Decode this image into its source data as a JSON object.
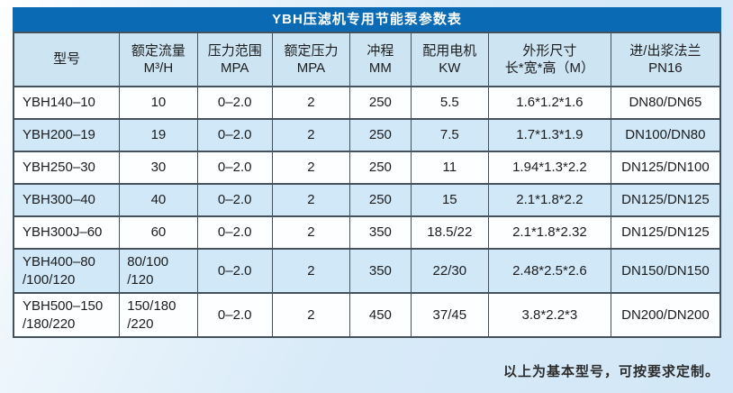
{
  "title": "YBH压滤机专用节能泵参数表",
  "colors": {
    "title_bar_bg": "#0a6bb4",
    "title_text": "#ffffff",
    "header_row_bg": "#cde4f3",
    "alt_row_bg": "#d0e8f8",
    "row_bg": "#fdfeff",
    "border": "#43525c",
    "page_bg": "#d8eaf8"
  },
  "table": {
    "columns": [
      "型号",
      "额定流量\nM³/H",
      "压力范围\nMPA",
      "额定压力\nMPA",
      "冲程\nMM",
      "配用电机\nKW",
      "外形尺寸\n长*宽*高（M）",
      "进/出浆法兰\nPN16"
    ],
    "rows": [
      [
        "YBH140–10",
        "10",
        "0–2.0",
        "2",
        "250",
        "5.5",
        "1.6*1.2*1.6",
        "DN80/DN65"
      ],
      [
        "YBH200–19",
        "19",
        "0–2.0",
        "2",
        "250",
        "7.5",
        "1.7*1.3*1.9",
        "DN100/DN80"
      ],
      [
        "YBH250–30",
        "30",
        "0–2.0",
        "2",
        "250",
        "11",
        "1.94*1.3*2.2",
        "DN125/DN100"
      ],
      [
        "YBH300–40",
        "40",
        "0–2.0",
        "2",
        "250",
        "15",
        "2.1*1.8*2.2",
        "DN125/DN125"
      ],
      [
        "YBH300J–60",
        "60",
        "0–2.0",
        "2",
        "350",
        "18.5/22",
        "2.1*1.8*2.32",
        "DN125/DN125"
      ],
      [
        "YBH400–80\n/100/120",
        "80/100\n/120",
        "0–2.0",
        "2",
        "350",
        "22/30",
        "2.48*2.5*2.6",
        "DN150/DN150"
      ],
      [
        "YBH500–150\n/180/220",
        "150/180\n/220",
        "0–2.0",
        "2",
        "450",
        "37/45",
        "3.8*2.2*3",
        "DN200/DN200"
      ]
    ],
    "footer_note": "以上为基本型号，可按要求定制。"
  }
}
